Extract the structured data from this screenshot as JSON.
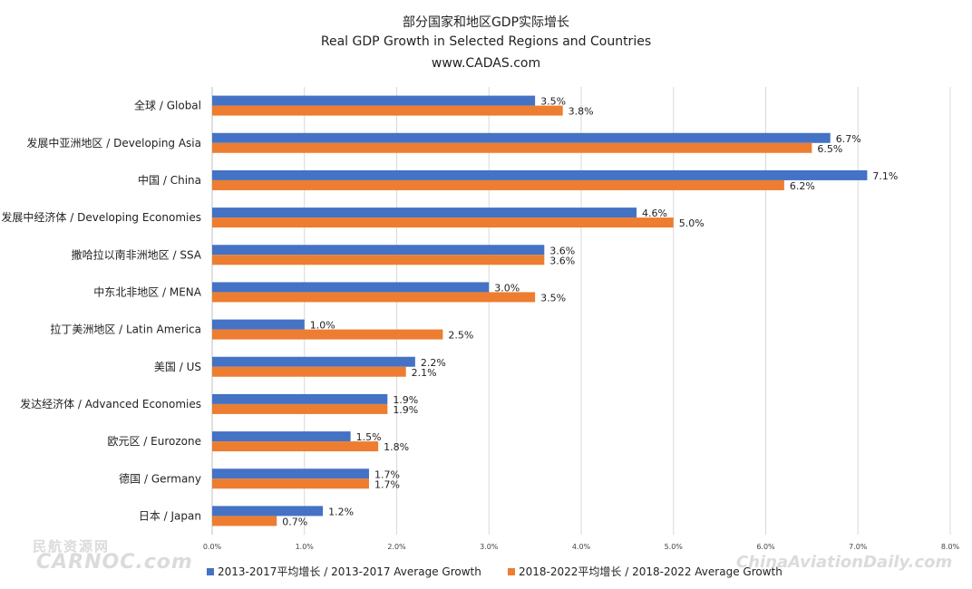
{
  "chart_data": {
    "type": "bar",
    "orientation": "horizontal",
    "title": [
      "部分国家和地区GDP实际增长",
      "Real GDP Growth in Selected Regions and Countries",
      "www.CADAS.com"
    ],
    "categories": [
      "全球 / Global",
      "发展中亚洲地区 / Developing Asia",
      "中国 / China",
      "发展中经济体 / Developing Economies",
      "撒哈拉以南非洲地区 / SSA",
      "中东北非地区 / MENA",
      "拉丁美洲地区 / Latin America",
      "美国 / US",
      "发达经济体 / Advanced Economies",
      "欧元区 / Eurozone",
      "德国 / Germany",
      "日本 / Japan"
    ],
    "series": [
      {
        "name": "2013-2017平均增长 / 2013-2017 Average Growth",
        "color": "#4472C4",
        "values": [
          3.5,
          6.7,
          7.1,
          4.6,
          3.6,
          3.0,
          1.0,
          2.2,
          1.9,
          1.5,
          1.7,
          1.2
        ],
        "labels": [
          "3.5%",
          "6.7%",
          "7.1%",
          "4.6%",
          "3.6%",
          "3.0%",
          "1.0%",
          "2.2%",
          "1.9%",
          "1.5%",
          "1.7%",
          "1.2%"
        ]
      },
      {
        "name": "2018-2022平均增长 / 2018-2022 Average Growth",
        "color": "#ED7D31",
        "values": [
          3.8,
          6.5,
          6.2,
          5.0,
          3.6,
          3.5,
          2.5,
          2.1,
          1.9,
          1.8,
          1.7,
          0.7
        ],
        "labels": [
          "3.8%",
          "6.5%",
          "6.2%",
          "5.0%",
          "3.6%",
          "3.5%",
          "2.5%",
          "2.1%",
          "1.9%",
          "1.8%",
          "1.7%",
          "0.7%"
        ]
      }
    ],
    "xlim": [
      0,
      8
    ],
    "xticks": [
      "0.0%",
      "1.0%",
      "2.0%",
      "3.0%",
      "4.0%",
      "5.0%",
      "6.0%",
      "7.0%",
      "8.0%"
    ],
    "grid": "vertical",
    "legend": "bottom",
    "gridColor": "#D9D9D9"
  },
  "watermarks": {
    "left_top": "民航资源网",
    "left_bottom": "CARNOC.com",
    "right": "ChinaAviationDaily.com"
  }
}
